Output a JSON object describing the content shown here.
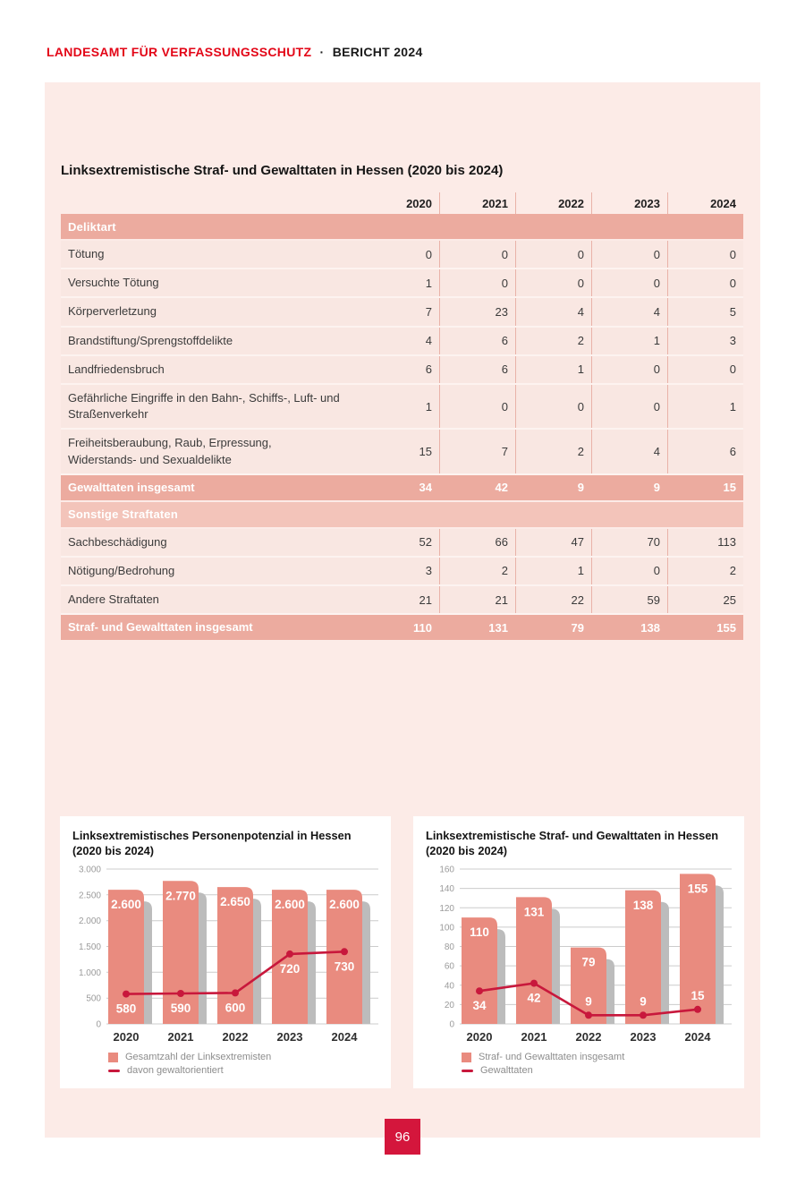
{
  "colors": {
    "brand_red": "#e30617",
    "page_square": "#d4163c",
    "bar": "#e98b7f",
    "bar_shadow": "#bcbcbc",
    "line": "#c8183c",
    "grid": "#cccccc",
    "tick_text": "#9b9b9b",
    "axis_text": "#2e2e2e",
    "legend_text": "#8d8d8d",
    "table_header_bg": "#ecab9f",
    "table_subheader_bg": "#f3c4ba",
    "row_bg": "#f9e7e2",
    "column_separator": "#e9b2a8",
    "block_bg": "#fcebe7"
  },
  "header": {
    "brand": "LANDESAMT FÜR VERFASSUNGSSCHUTZ",
    "dot": "·",
    "report": "BERICHT 2024"
  },
  "page_number": "96",
  "table": {
    "title": "Linksextremistische Straf- und Gewalttaten in Hessen (2020 bis 2024)",
    "years": [
      "2020",
      "2021",
      "2022",
      "2023",
      "2024"
    ],
    "deliktart_header": "Deliktart",
    "violence_rows": [
      {
        "label": "Tötung",
        "values": [
          "0",
          "0",
          "0",
          "0",
          "0"
        ]
      },
      {
        "label": "Versuchte Tötung",
        "values": [
          "1",
          "0",
          "0",
          "0",
          "0"
        ]
      },
      {
        "label": "Körperverletzung",
        "values": [
          "7",
          "23",
          "4",
          "4",
          "5"
        ]
      },
      {
        "label": "Brandstiftung/Sprengstoffdelikte",
        "values": [
          "4",
          "6",
          "2",
          "1",
          "3"
        ]
      },
      {
        "label": "Landfriedensbruch",
        "values": [
          "6",
          "6",
          "1",
          "0",
          "0"
        ]
      },
      {
        "label": "Gefährliche Eingriffe in den Bahn-, Schiffs-, Luft- und\nStraßenverkehr",
        "values": [
          "1",
          "0",
          "0",
          "0",
          "1"
        ]
      },
      {
        "label": "Freiheitsberaubung, Raub, Erpressung,\nWiderstands- und Sexualdelikte",
        "values": [
          "15",
          "7",
          "2",
          "4",
          "6"
        ]
      }
    ],
    "violence_total": {
      "label": "Gewalttaten insgesamt",
      "values": [
        "34",
        "42",
        "9",
        "9",
        "15"
      ]
    },
    "other_header": "Sonstige Straftaten",
    "other_rows": [
      {
        "label": "Sachbeschädigung",
        "values": [
          "52",
          "66",
          "47",
          "70",
          "113"
        ]
      },
      {
        "label": "Nötigung/Bedrohung",
        "values": [
          "3",
          "2",
          "1",
          "0",
          "2"
        ]
      },
      {
        "label": "Andere Straftaten",
        "values": [
          "21",
          "21",
          "22",
          "59",
          "25"
        ]
      }
    ],
    "grand_total": {
      "label": "Straf- und Gewalttaten insgesamt",
      "values": [
        "110",
        "131",
        "79",
        "138",
        "155"
      ]
    }
  },
  "chart_data": [
    {
      "type": "bar",
      "title": "Linksextremistisches Personenpotenzial in Hessen",
      "subtitle": "(2020 bis 2024)",
      "categories": [
        "2020",
        "2021",
        "2022",
        "2023",
        "2024"
      ],
      "series": [
        {
          "name": "Gesamtzahl der Linksextremisten",
          "kind": "bar",
          "values": [
            2600,
            2770,
            2650,
            2600,
            2600
          ],
          "labels": [
            "2.600",
            "2.770",
            "2.650",
            "2.600",
            "2.600"
          ]
        },
        {
          "name": "davon gewaltorientiert",
          "kind": "line",
          "values": [
            580,
            590,
            600,
            720,
            730
          ],
          "labels": [
            "580",
            "590",
            "600",
            "720",
            "730"
          ],
          "display_values": [
            580,
            590,
            600,
            1355,
            1400
          ]
        }
      ],
      "ylim": [
        0,
        3000
      ],
      "yticks": {
        "values": [
          0,
          500,
          1000,
          1500,
          2000,
          2500,
          3000
        ],
        "labels": [
          "0",
          "500",
          "1.000",
          "1.500",
          "2.000",
          "2.500",
          "3.000"
        ]
      },
      "grid": true,
      "legend_position": "bottom"
    },
    {
      "type": "bar",
      "title": "Linksextremistische Straf- und Gewalttaten in Hessen",
      "subtitle": "(2020 bis 2024)",
      "categories": [
        "2020",
        "2021",
        "2022",
        "2023",
        "2024"
      ],
      "series": [
        {
          "name": "Straf- und Gewalttaten insgesamt",
          "kind": "bar",
          "values": [
            110,
            131,
            79,
            138,
            155
          ],
          "labels": [
            "110",
            "131",
            "79",
            "138",
            "155"
          ]
        },
        {
          "name": "Gewalttaten",
          "kind": "line",
          "values": [
            34,
            42,
            9,
            9,
            15
          ],
          "labels": [
            "34",
            "42",
            "9",
            "9",
            "15"
          ]
        }
      ],
      "ylim": [
        0,
        160
      ],
      "yticks": {
        "values": [
          0,
          20,
          40,
          60,
          80,
          100,
          120,
          140,
          160
        ],
        "labels": [
          "0",
          "20",
          "40",
          "60",
          "80",
          "100",
          "120",
          "140",
          "160"
        ]
      },
      "grid": true,
      "legend_position": "bottom"
    }
  ]
}
